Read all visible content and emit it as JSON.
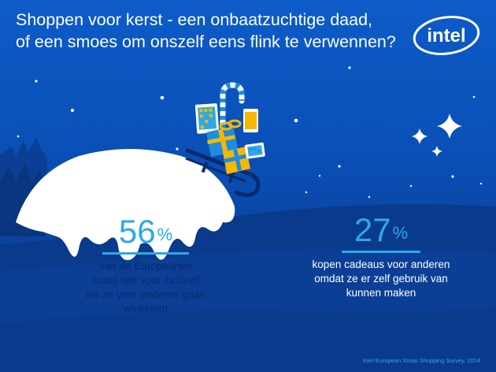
{
  "title": {
    "line1": "Shoppen voor kerst - een onbaatzuchtige daad,",
    "line2": "of een smoes om onszelf eens flink te verwennen?"
  },
  "logo": {
    "text": "intel"
  },
  "stats": [
    {
      "value": "56",
      "unit": "%",
      "text": "van de Europeanen koopt iets voor zichzelf als ze voor anderen gaan winkelen!"
    },
    {
      "value": "27",
      "unit": "%",
      "text": "kopen cadeaus voor anderen omdat ze er zelf gebruik van kunnen maken"
    }
  ],
  "source": "Intel European Xmas Shopping Survey, 2014",
  "colors": {
    "background": "#0a4eb4",
    "accent": "#2ea8e8",
    "snow": "#ffffff",
    "dark_text": "#0a2a6e",
    "gift_blue": "#1e8de0",
    "gift_yellow": "#f5b800"
  }
}
